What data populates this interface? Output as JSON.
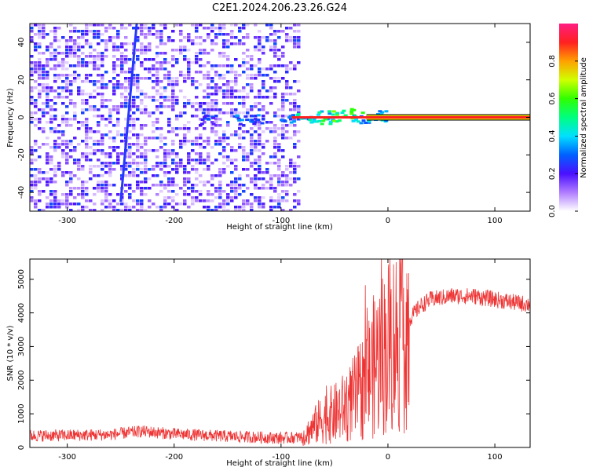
{
  "title": "C2E1.2024.206.23.26.G24",
  "chart_data": [
    {
      "type": "heatmap",
      "xlabel": "Height of straight line (km)",
      "ylabel": "Frequency (Hz)",
      "xlim": [
        -335,
        133
      ],
      "ylim": [
        -50,
        50
      ],
      "xticks": [
        -300,
        -200,
        -100,
        0,
        100
      ],
      "yticks": [
        -40,
        -20,
        0,
        20,
        40
      ],
      "colorbar": {
        "label": "Normalized spectral amplitude",
        "range": [
          0,
          1
        ],
        "ticks": [
          0.0,
          0.2,
          0.4,
          0.6,
          0.8
        ]
      },
      "features": [
        {
          "kind": "noise",
          "x_range": [
            -335,
            -85
          ],
          "f_range": [
            -50,
            50
          ],
          "amplitude": 0.2
        },
        {
          "kind": "tilted_line",
          "x_start": -250,
          "f_start": -45,
          "x_end": -235,
          "f_end": 50,
          "amplitude": 0.25
        },
        {
          "kind": "carrier",
          "x_range": [
            -90,
            133
          ],
          "f": 0,
          "amplitude": 0.9
        }
      ]
    },
    {
      "type": "line",
      "xlabel": "Height of straight line (km)",
      "ylabel": "SNR (10 * v/v)",
      "xlim": [
        -335,
        133
      ],
      "ylim": [
        0,
        5600
      ],
      "xticks": [
        -300,
        -200,
        -100,
        0,
        100
      ],
      "yticks": [
        0,
        1000,
        2000,
        3000,
        4000,
        5000
      ],
      "color": "#ee3333",
      "series": [
        {
          "x": [
            -335,
            -300,
            -260,
            -240,
            -230,
            -200,
            -150,
            -100,
            -80,
            -70,
            -60,
            -50,
            -40,
            -30,
            -20,
            -10,
            0,
            10,
            20,
            30,
            40,
            60,
            80,
            100,
            120,
            133
          ],
          "y": [
            350,
            360,
            380,
            450,
            480,
            400,
            330,
            280,
            300,
            600,
            900,
            1000,
            1200,
            1500,
            2000,
            2600,
            3000,
            3300,
            3800,
            4200,
            4400,
            4500,
            4500,
            4400,
            4300,
            4250
          ]
        }
      ]
    }
  ]
}
